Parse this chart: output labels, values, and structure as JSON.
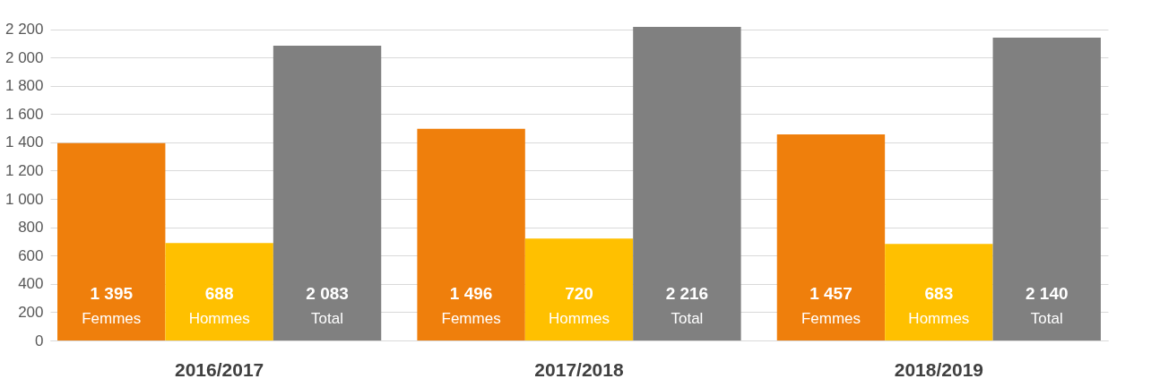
{
  "chart_data": {
    "type": "bar",
    "categories": [
      "2016/2017",
      "2017/2018",
      "2018/2019"
    ],
    "series": [
      {
        "name": "Femmes",
        "color": "#ef7f0c",
        "values": [
          1395,
          1496,
          1457
        ],
        "value_labels": [
          "1 395",
          "1 496",
          "1 457"
        ]
      },
      {
        "name": "Hommes",
        "color": "#ffc000",
        "values": [
          688,
          720,
          683
        ],
        "value_labels": [
          "688",
          "720",
          "683"
        ]
      },
      {
        "name": "Total",
        "color": "#808080",
        "values": [
          2083,
          2216,
          2140
        ],
        "value_labels": [
          "2 083",
          "2 216",
          "2 140"
        ]
      }
    ],
    "ylim": [
      0,
      2216
    ],
    "yticks": [
      0,
      200,
      400,
      600,
      800,
      {
        "value": 1000,
        "label": "1 000"
      },
      {
        "value": 1200,
        "label": "1 200"
      },
      {
        "value": 1400,
        "label": "1 400"
      },
      {
        "value": 1600,
        "label": "1 600"
      },
      {
        "value": 1800,
        "label": "1 800"
      },
      {
        "value": 2000,
        "label": "2 000"
      },
      {
        "value": 2200,
        "label": "2 200"
      }
    ],
    "grid": "y"
  }
}
